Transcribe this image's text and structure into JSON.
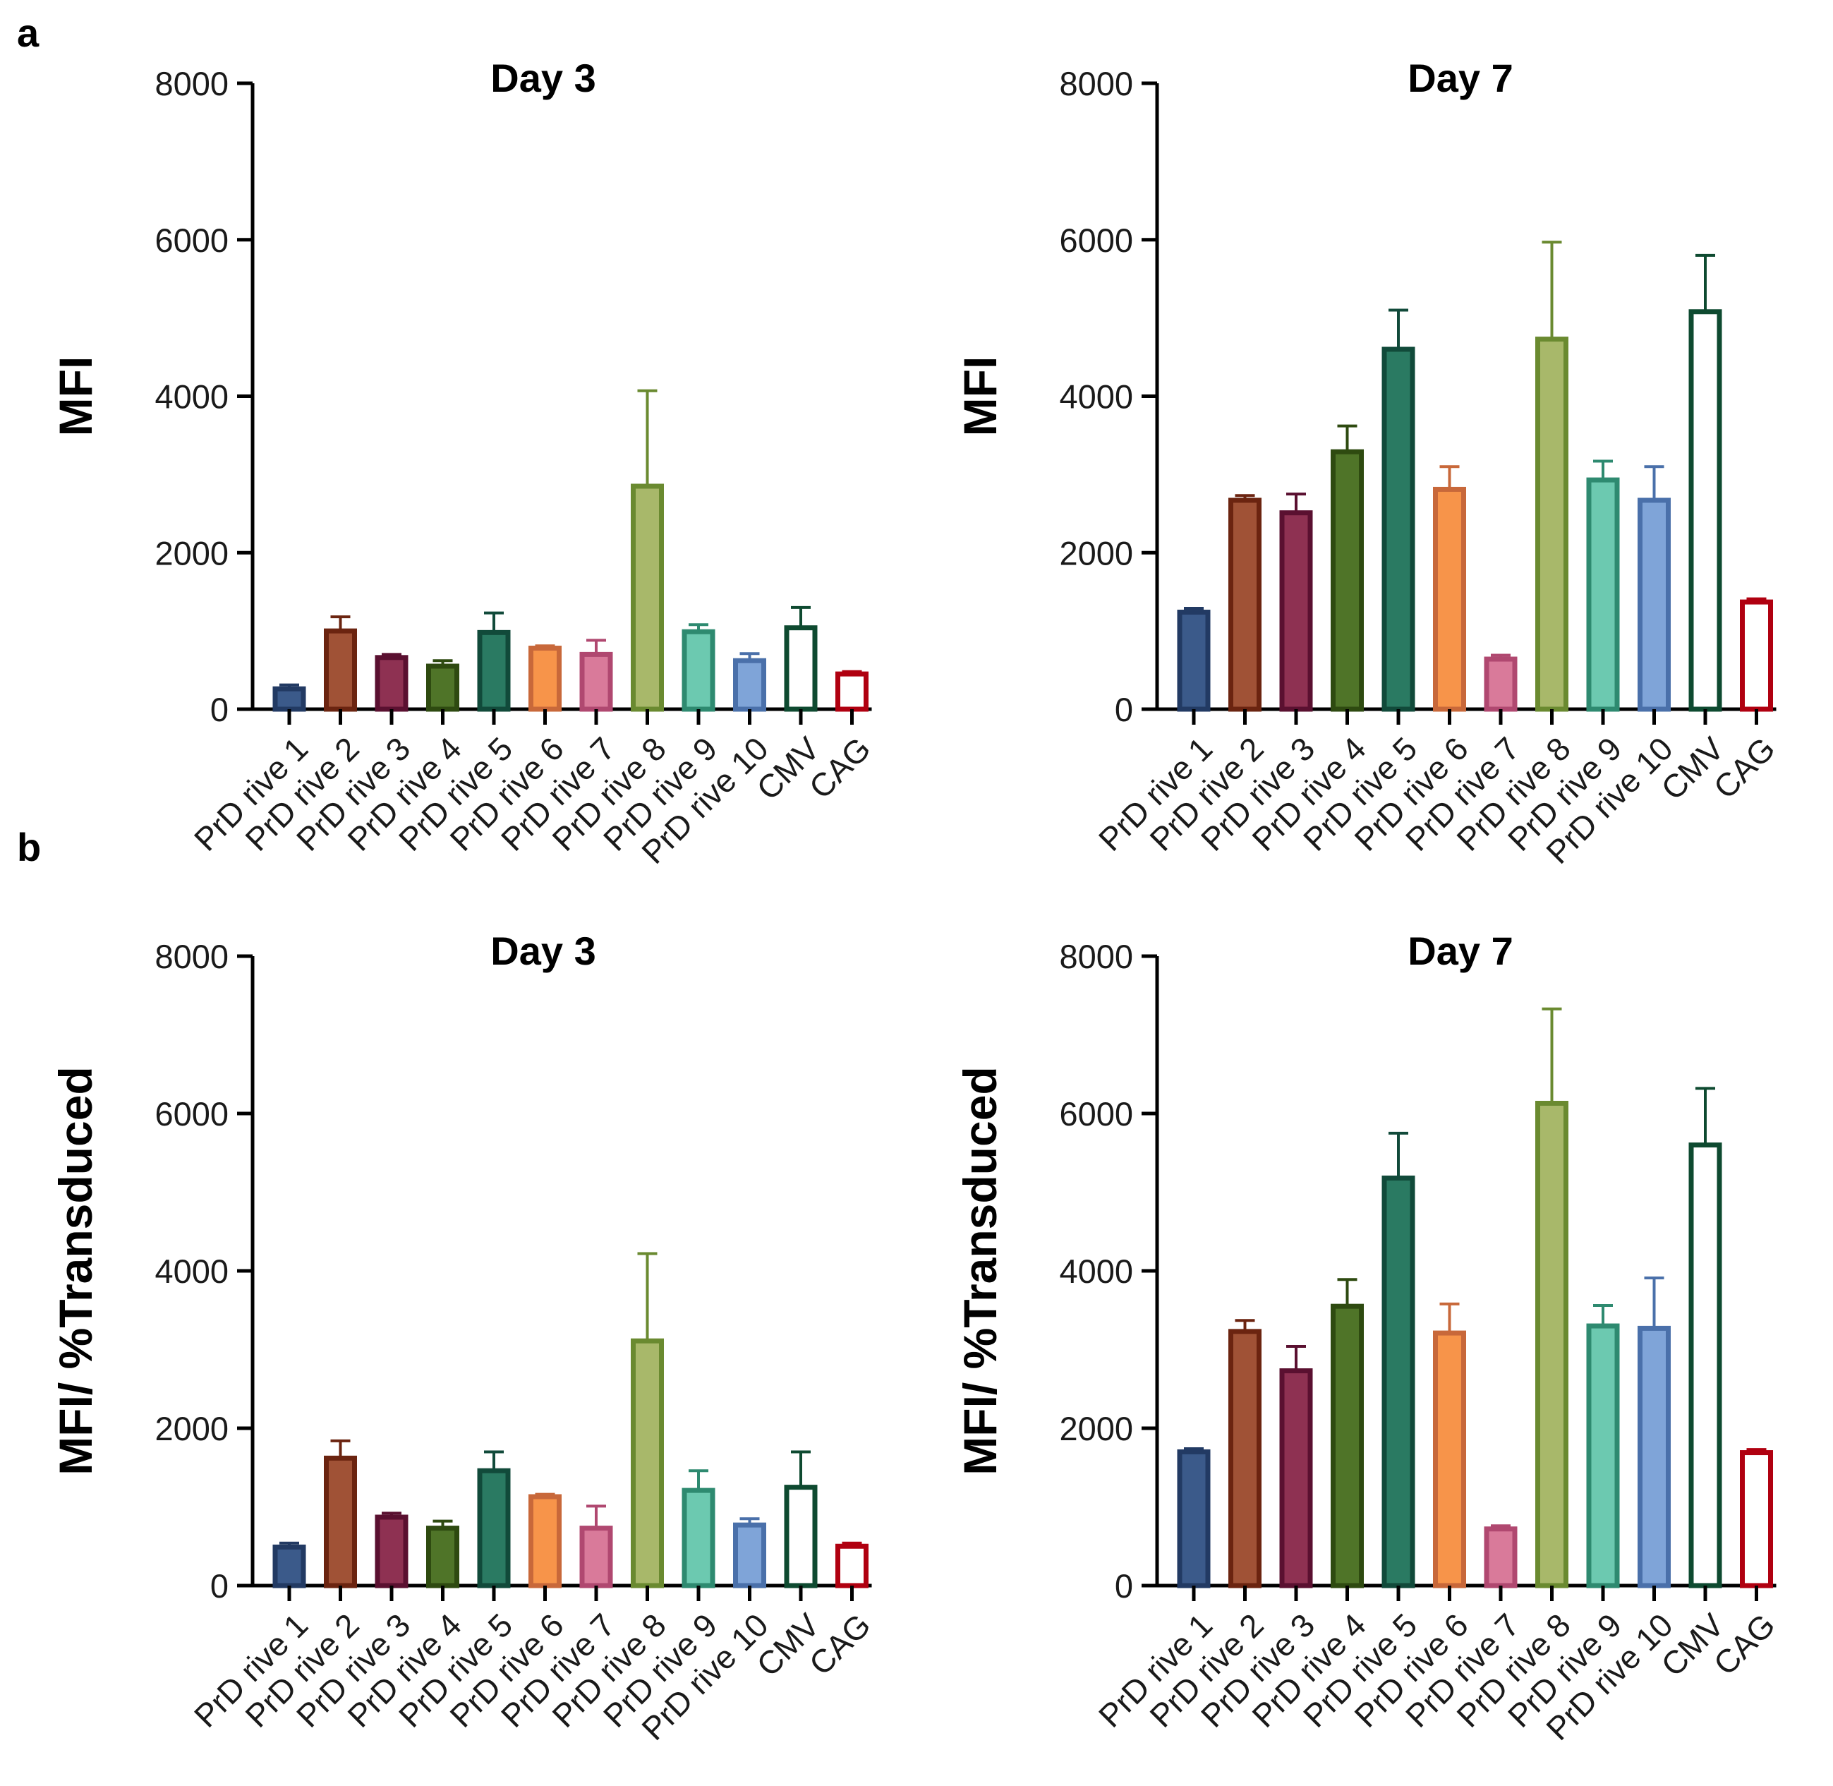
{
  "panel_labels": [
    "a",
    "b"
  ],
  "bar_colors": [
    {
      "fill": "#3b5a8a",
      "edge": "#223a63"
    },
    {
      "fill": "#a05236",
      "edge": "#6b2410"
    },
    {
      "fill": "#8e3152",
      "edge": "#5a1030"
    },
    {
      "fill": "#4f7428",
      "edge": "#2e4a10"
    },
    {
      "fill": "#2a7a62",
      "edge": "#114a3a"
    },
    {
      "fill": "#f7944a",
      "edge": "#c8683a"
    },
    {
      "fill": "#d97a9a",
      "edge": "#b04870"
    },
    {
      "fill": "#a8b86a",
      "edge": "#6a8a30"
    },
    {
      "fill": "#6cc9b0",
      "edge": "#2e8a70"
    },
    {
      "fill": "#7fa4d8",
      "edge": "#4a70aa"
    },
    {
      "fill": "#ffffff",
      "edge": "#0e4a30"
    },
    {
      "fill": "#ffffff",
      "edge": "#b00010"
    }
  ],
  "chart_data": [
    {
      "type": "bar",
      "panel": "a",
      "title": "Day 3",
      "ylabel": "MFI",
      "xlabel": "",
      "categories": [
        "PrD rive 1",
        "PrD rive 2",
        "PrD rive 3",
        "PrD rive 4",
        "PrD rive 5",
        "PrD rive 6",
        "PrD rive 7",
        "PrD rive 8",
        "PrD rive 9",
        "PrD rive 10",
        "CMV",
        "CAG"
      ],
      "values": [
        260,
        1000,
        660,
        550,
        980,
        780,
        700,
        2850,
        990,
        620,
        1040,
        450
      ],
      "error_upper": [
        310,
        1180,
        700,
        620,
        1230,
        810,
        880,
        4070,
        1080,
        710,
        1300,
        480
      ],
      "ylim": [
        0,
        8000
      ],
      "yticks": [
        0,
        2000,
        4000,
        6000,
        8000
      ]
    },
    {
      "type": "bar",
      "panel": "a",
      "title": "Day 7",
      "ylabel": "MFI",
      "xlabel": "",
      "categories": [
        "PrD rive 1",
        "PrD rive 2",
        "PrD rive 3",
        "PrD rive 4",
        "PrD rive 5",
        "PrD rive 6",
        "PrD rive 7",
        "PrD rive 8",
        "PrD rive 9",
        "PrD rive 10",
        "CMV",
        "CAG"
      ],
      "values": [
        1240,
        2670,
        2510,
        3290,
        4600,
        2810,
        640,
        4730,
        2930,
        2670,
        5080,
        1370
      ],
      "error_upper": [
        1290,
        2730,
        2750,
        3620,
        5100,
        3100,
        690,
        5970,
        3170,
        3100,
        5800,
        1410
      ],
      "ylim": [
        0,
        8000
      ],
      "yticks": [
        0,
        2000,
        4000,
        6000,
        8000
      ]
    },
    {
      "type": "bar",
      "panel": "b",
      "title": "Day 3",
      "ylabel": "MFI/ %Transduced",
      "xlabel": "",
      "categories": [
        "PrD rive 1",
        "PrD rive 2",
        "PrD rive 3",
        "PrD rive 4",
        "PrD rive 5",
        "PrD rive 6",
        "PrD rive 7",
        "PrD rive 8",
        "PrD rive 9",
        "PrD rive 10",
        "CMV",
        "CAG"
      ],
      "values": [
        490,
        1620,
        870,
        730,
        1460,
        1130,
        730,
        3110,
        1210,
        770,
        1250,
        500
      ],
      "error_upper": [
        540,
        1840,
        920,
        820,
        1700,
        1160,
        1010,
        4220,
        1460,
        850,
        1700,
        540
      ],
      "ylim": [
        0,
        8000
      ],
      "yticks": [
        0,
        2000,
        4000,
        6000,
        8000
      ]
    },
    {
      "type": "bar",
      "panel": "b",
      "title": "Day 7",
      "ylabel": "MFI/ %Transduced",
      "xlabel": "",
      "categories": [
        "PrD rive 1",
        "PrD rive 2",
        "PrD rive 3",
        "PrD rive 4",
        "PrD rive 5",
        "PrD rive 6",
        "PrD rive 7",
        "PrD rive 8",
        "PrD rive 9",
        "PrD rive 10",
        "CMV",
        "CAG"
      ],
      "values": [
        1700,
        3230,
        2730,
        3550,
        5180,
        3210,
        720,
        6130,
        3300,
        3270,
        5600,
        1690
      ],
      "error_upper": [
        1740,
        3370,
        3040,
        3890,
        5750,
        3580,
        760,
        7330,
        3560,
        3910,
        6320,
        1730
      ],
      "ylim": [
        0,
        8000
      ],
      "yticks": [
        0,
        2000,
        4000,
        6000,
        8000
      ]
    }
  ]
}
